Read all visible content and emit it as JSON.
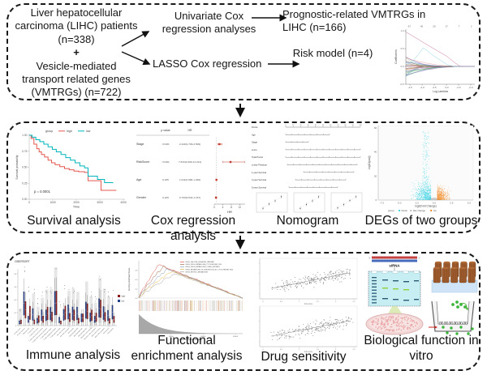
{
  "figure": {
    "top": {
      "cohort": {
        "part1": "Liver hepatocellular carcinoma (LIHC) patients (n=338)",
        "plus": "+",
        "part2": "Vesicle-mediated transport related genes (VMTRGs) (n=722)"
      },
      "method_univariate": "Univariate Cox regression analyses",
      "method_lasso": "LASSO Cox regression",
      "result_prognostic": "Prognostic-related VMTRGs in LIHC (n=166)",
      "result_risk": "Risk model (n=4)"
    },
    "middle": {
      "captions": [
        "Survival analysis",
        "Cox regression analysis",
        "Nomogram",
        "DEGs of two groups"
      ]
    },
    "bottom": {
      "captions": [
        "Immune analysis",
        "Functional enrichment analysis",
        "Drug sensitivity",
        "Biological function in vitro"
      ]
    }
  },
  "bio": {
    "sirna_label": "siRNA",
    "five_prime": "5'",
    "three_prime": "3'"
  },
  "chart_data": [
    {
      "id": "lasso",
      "type": "line",
      "xlabel": "Log Lambda",
      "ylabel": "Coefficients",
      "x_ticks": [
        "-4.5",
        "-4.0",
        "-3.5",
        "-3.0",
        "-2.5",
        "-2.0"
      ],
      "top_axis_labels": [
        "67",
        "45",
        "29",
        "17",
        "7",
        "2"
      ],
      "y_ticks": [
        "-0.5",
        "0.0",
        "0.5",
        "1.0"
      ],
      "ylim": [
        -0.6,
        1.05
      ],
      "description": "LASSO coefficient paths shrinking to zero; magenta path starts near 1.0, light-blue path peaks near 0.5"
    },
    {
      "id": "km",
      "type": "line",
      "legend_title": "group",
      "p_text": "p = 0.0001",
      "xlabel": "Time",
      "ylabel": "Survival probability",
      "x_ticks": [
        0,
        1000,
        2000,
        3000,
        4000
      ],
      "y_ticks": [
        "0.00",
        "0.25",
        "0.50",
        "0.75",
        "1.00"
      ],
      "series": [
        {
          "name": "high",
          "color": "#e4574f",
          "points": [
            [
              0,
              1
            ],
            [
              80,
              0.95
            ],
            [
              200,
              0.86
            ],
            [
              320,
              0.79
            ],
            [
              420,
              0.74
            ],
            [
              520,
              0.7
            ],
            [
              650,
              0.66
            ],
            [
              800,
              0.61
            ],
            [
              950,
              0.57
            ],
            [
              1100,
              0.54
            ],
            [
              1300,
              0.51
            ],
            [
              1500,
              0.48
            ],
            [
              1700,
              0.46
            ],
            [
              1900,
              0.44
            ],
            [
              2100,
              0.43
            ],
            [
              2350,
              0.42
            ],
            [
              2500,
              0.29
            ],
            [
              3050,
              0.14
            ],
            [
              3700,
              0.14
            ]
          ]
        },
        {
          "name": "low",
          "color": "#00b5bc",
          "points": [
            [
              0,
              1
            ],
            [
              120,
              0.97
            ],
            [
              280,
              0.93
            ],
            [
              450,
              0.9
            ],
            [
              620,
              0.86
            ],
            [
              800,
              0.82
            ],
            [
              980,
              0.78
            ],
            [
              1150,
              0.74
            ],
            [
              1350,
              0.7
            ],
            [
              1550,
              0.65
            ],
            [
              1750,
              0.61
            ],
            [
              1950,
              0.57
            ],
            [
              2150,
              0.52
            ],
            [
              2350,
              0.49
            ],
            [
              2500,
              0.36
            ],
            [
              2900,
              0.31
            ],
            [
              3200,
              0.26
            ],
            [
              3550,
              0.25
            ]
          ]
        }
      ]
    },
    {
      "id": "forest",
      "type": "table",
      "headers": [
        "p value",
        "HR"
      ],
      "xlabel": "HR",
      "x_ticks": [
        0,
        4,
        8,
        12
      ],
      "marker_color": "#c0392b",
      "rows": [
        {
          "name": "Stage",
          "p": "<0.001",
          "hr_text": "2.449(1.709-3.509)",
          "hr": 2.449,
          "lo": 1.709,
          "hi": 3.509
        },
        {
          "name": "RiskScore",
          "p": "<0.001",
          "hr_text": "7.633(4.099-14.214)",
          "hr": 7.633,
          "lo": 4.099,
          "hi": 14.214
        },
        {
          "name": "Age",
          "p": "0.105",
          "hr_text": "1.011(0.996-1.026)",
          "hr": 1.011,
          "lo": 0.996,
          "hi": 1.026
        },
        {
          "name": "Gender",
          "p": "0.229",
          "hr_text": "0.793(0.544-1.157)",
          "hr": 0.793,
          "lo": 0.544,
          "hi": 1.157
        }
      ]
    },
    {
      "id": "nomogram",
      "type": "table",
      "rows": [
        "Points",
        "Age",
        "Stage",
        "score",
        "Total Points",
        "Linear Predictor",
        "1-year Survival",
        "3-year Survival",
        "5-year Survival"
      ],
      "points_scale": [
        0,
        10,
        20,
        30,
        40,
        50,
        60,
        70,
        80,
        90,
        100
      ],
      "calibration_plots": 3
    },
    {
      "id": "volcano",
      "type": "scatter",
      "xlabel": "log2(Fold Change)",
      "ylabel": "-log10(padj)",
      "x_ticks": [
        "-7.5",
        "-5.0",
        "-2.5",
        "0.0",
        "2.5",
        "5.0"
      ],
      "y_ticks": [
        0,
        20,
        40,
        60
      ],
      "legend": {
        "title": "group",
        "entries": [
          {
            "label": "Down",
            "color": "#33d1e4"
          },
          {
            "label": "Not change",
            "color": "#bdbdbd"
          },
          {
            "label": "Up",
            "color": "#f08418"
          }
        ]
      },
      "clusters": [
        {
          "name": "Down",
          "color": "#33d1e4",
          "x_range": [
            -7.5,
            -0.4
          ],
          "y_range": [
            0,
            58
          ],
          "n": 700
        },
        {
          "name": "Up",
          "color": "#f08418",
          "x_range": [
            0.4,
            5.2
          ],
          "y_range": [
            0,
            35
          ],
          "n": 450
        },
        {
          "name": "Not change",
          "color": "#bdbdbd",
          "x_range": [
            -2.5,
            2.5
          ],
          "y_range": [
            0,
            4
          ],
          "n": 400
        }
      ]
    },
    {
      "id": "immune",
      "type": "bar",
      "title": "CIBERSORT",
      "y_ticks": [
        "0",
        "0.2",
        "0.4",
        "0.6",
        "0.8"
      ],
      "groups": [
        {
          "label": "high",
          "color": "#8c1c1c"
        },
        {
          "label": "low",
          "color": "#27408b"
        }
      ],
      "categories": [
        "B cells naive",
        "B cells memory",
        "Plasma cells",
        "T cells CD8",
        "T cells CD4 naive",
        "T cells CD4 memory resting",
        "T cells CD4 memory activated",
        "T cells follicular helper",
        "T cells regulatory (Tregs)",
        "T cells gamma delta",
        "NK cells resting",
        "NK cells activated",
        "Monocytes",
        "Macrophages M0",
        "Macrophages M1",
        "Macrophages M2",
        "Dendritic cells resting",
        "Dendritic cells activated",
        "Mast cells resting",
        "Mast cells activated",
        "Eosinophils",
        "Neutrophils"
      ]
    },
    {
      "id": "gsea",
      "type": "line",
      "ylabel": "Running Enrichment Score",
      "xlabel": "Rank in Ordered Dataset",
      "x_ticks": [
        10000,
        20000,
        30000
      ],
      "y_ticks": [
        "0.0",
        "0.2",
        "0.4",
        "0.6"
      ],
      "series": [
        {
          "name": "KEGG_CALCIUM_SIGNALING_PATHWAY",
          "color": "#de5246"
        },
        {
          "name": "KEGG_DRUG_METABOLISM_CYTOCHROME_P450",
          "color": "#9a6a50"
        },
        {
          "name": "KEGG_DRUG_METABOLISM_OTHER_ENZYMES",
          "color": "#8f9fba"
        },
        {
          "name": "KEGG_METABOLISM_OF_XENOBIOTICS_BY_CYTOCHROME_P450",
          "color": "#e8b64a"
        },
        {
          "name": "KEGG_RETINOL_METABOLISM",
          "color": "#a9a9a9"
        }
      ]
    },
    {
      "id": "drug",
      "type": "scatter",
      "xlabel": "risk score",
      "x_ticks": [
        "0",
        "0.5",
        "1",
        "1.5",
        "2",
        "2.5"
      ],
      "point_color": "#555555",
      "panels": [
        {
          "trend": "positive"
        },
        {
          "trend": "positive"
        }
      ]
    }
  ]
}
